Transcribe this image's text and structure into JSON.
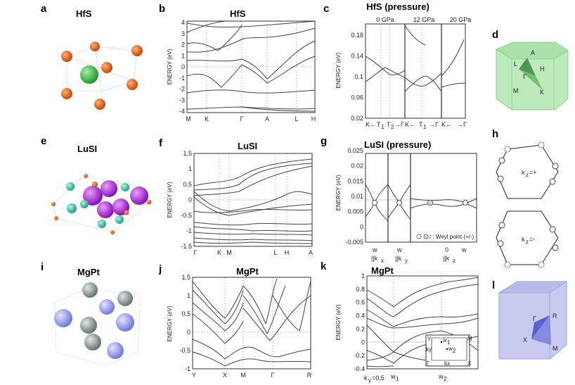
{
  "panels": {
    "a": {
      "label": "a",
      "title": "HfS"
    },
    "b": {
      "label": "b",
      "title": "HfS",
      "ylabel": "ENERGY (eV)",
      "yticks": [
        "4",
        "3",
        "2",
        "1",
        "0",
        "-1",
        "-2",
        "-3",
        "-4"
      ],
      "kpoints": [
        "M",
        "K",
        "Γ",
        "A",
        "L",
        "H"
      ]
    },
    "c": {
      "label": "c",
      "title": "HfS (pressure)",
      "ylabel": "ENERGY (eV)",
      "pressures": [
        "0 GPa",
        "12 GPa",
        "20 GPa"
      ],
      "yticks": [
        "0.18",
        "0.14",
        "0.1",
        "0.06",
        "0.02"
      ],
      "kpath": [
        "K←",
        "T",
        "1",
        "T",
        "2",
        "→Γ",
        "K←",
        "T",
        "1",
        "→Γ",
        "K←",
        "→Γ"
      ]
    },
    "d": {
      "label": "d",
      "bz_points": [
        "L",
        "A",
        "H",
        "Γ",
        "M",
        "K"
      ]
    },
    "e": {
      "label": "e",
      "title": "LuSI"
    },
    "f": {
      "label": "f",
      "title": "LuSI",
      "ylabel": "ENERGY (eV)",
      "yticks": [
        "1.5",
        "1",
        "0.5",
        "0",
        "-0.5",
        "-1",
        "-1.5"
      ],
      "kpoints": [
        "Γ",
        "K",
        "M",
        "L",
        "H",
        "A"
      ]
    },
    "g": {
      "label": "g",
      "title": "LuSI (pressure)",
      "ylabel": "ENERGY (eV)",
      "yticks": [
        "0.025",
        "0.02",
        "0.015",
        "0.01",
        "0.005",
        "0",
        "-0.005"
      ],
      "legend": "/ : Weyl point (+/-)",
      "xlabels": [
        "w",
        "w",
        "0",
        "w"
      ],
      "xsub": [
        "||k",
        "x",
        "||k",
        "y",
        "||k",
        "z"
      ]
    },
    "h": {
      "label": "h",
      "kz_top": "k",
      "kz_top_sub": "z",
      "kz_top_val": "=+",
      "kz_bot": "k",
      "kz_bot_sub": "z",
      "kz_bot_val": "=-"
    },
    "i": {
      "label": "i",
      "title": "MgPt"
    },
    "j": {
      "label": "j",
      "title": "MgPt",
      "ylabel": "ENERGY (eV)",
      "yticks": [
        "1.5",
        "1",
        "0.5",
        "0",
        "-0.5",
        "-1"
      ],
      "kpoints": [
        "Y",
        "X",
        "M",
        "Γ",
        "R"
      ]
    },
    "k": {
      "label": "k",
      "title": "MgPt",
      "ylabel": "ENERGY (eV)",
      "yticks": [
        "1",
        "0.8",
        "0.6",
        "0.4",
        "0.2",
        "0",
        "-0.2",
        "-0.4"
      ],
      "xlabels": [
        "k",
        "y",
        "=0.5",
        "w",
        "1",
        "w",
        "2"
      ],
      "inset": [
        "Y",
        "M",
        "Γ",
        "X",
        "ky",
        "kx",
        "w",
        "1",
        "w",
        "2"
      ]
    },
    "l": {
      "label": "l",
      "bz_points": [
        "Γ",
        "R",
        "X",
        "M"
      ]
    }
  },
  "colors": {
    "hf": "#e05a10",
    "s": "#3cc84a",
    "lu": "#b030d8",
    "i_atom": "#40c8a0",
    "mg": "#a8aaf0",
    "pt": "#9aa4a4",
    "bz_green": "#8ed88e",
    "bz_blue": "#9ea4e0",
    "band": "#444444"
  }
}
